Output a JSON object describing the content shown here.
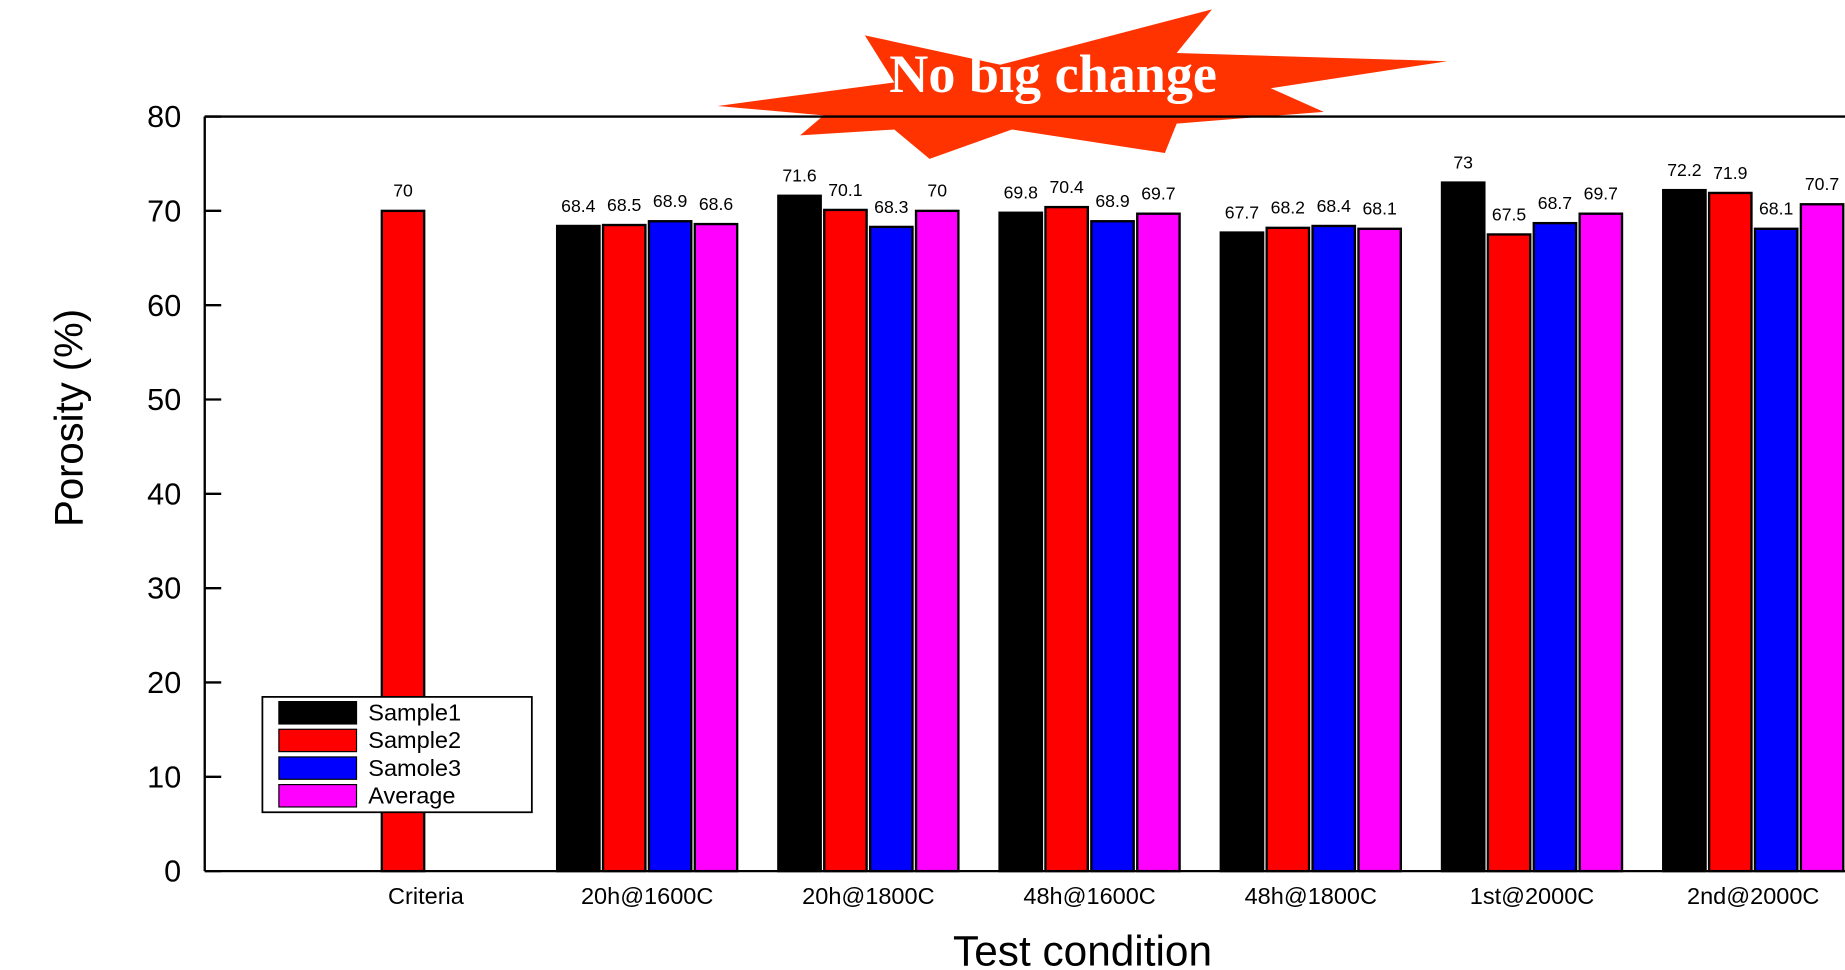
{
  "chart_data": {
    "type": "bar",
    "annotation": "No big change",
    "xlabel": "Test condition",
    "ylabel": "Porosity (%)",
    "categories": [
      "Criteria",
      "20h@1600C",
      "20h@1800C",
      "48h@1600C",
      "48h@1800C",
      "1st@2000C",
      "2nd@2000C"
    ],
    "series": [
      {
        "name": "Sample1",
        "color": "#000000",
        "values": [
          null,
          68.4,
          71.6,
          69.8,
          67.7,
          73,
          72.2
        ]
      },
      {
        "name": "Sample2",
        "color": "#ff0000",
        "values": [
          70,
          68.5,
          70.1,
          70.4,
          68.2,
          67.5,
          71.9
        ]
      },
      {
        "name": "Samole3",
        "color": "#0000ff",
        "values": [
          null,
          68.9,
          68.3,
          68.9,
          68.4,
          68.7,
          68.1
        ]
      },
      {
        "name": "Average",
        "color": "#ff00ff",
        "values": [
          null,
          68.6,
          70,
          69.7,
          68.1,
          69.7,
          70.7
        ]
      }
    ],
    "ylim": [
      0,
      80
    ],
    "yticks": [
      0,
      10,
      20,
      30,
      40,
      50,
      60,
      70,
      80
    ],
    "legend": "lower left"
  }
}
